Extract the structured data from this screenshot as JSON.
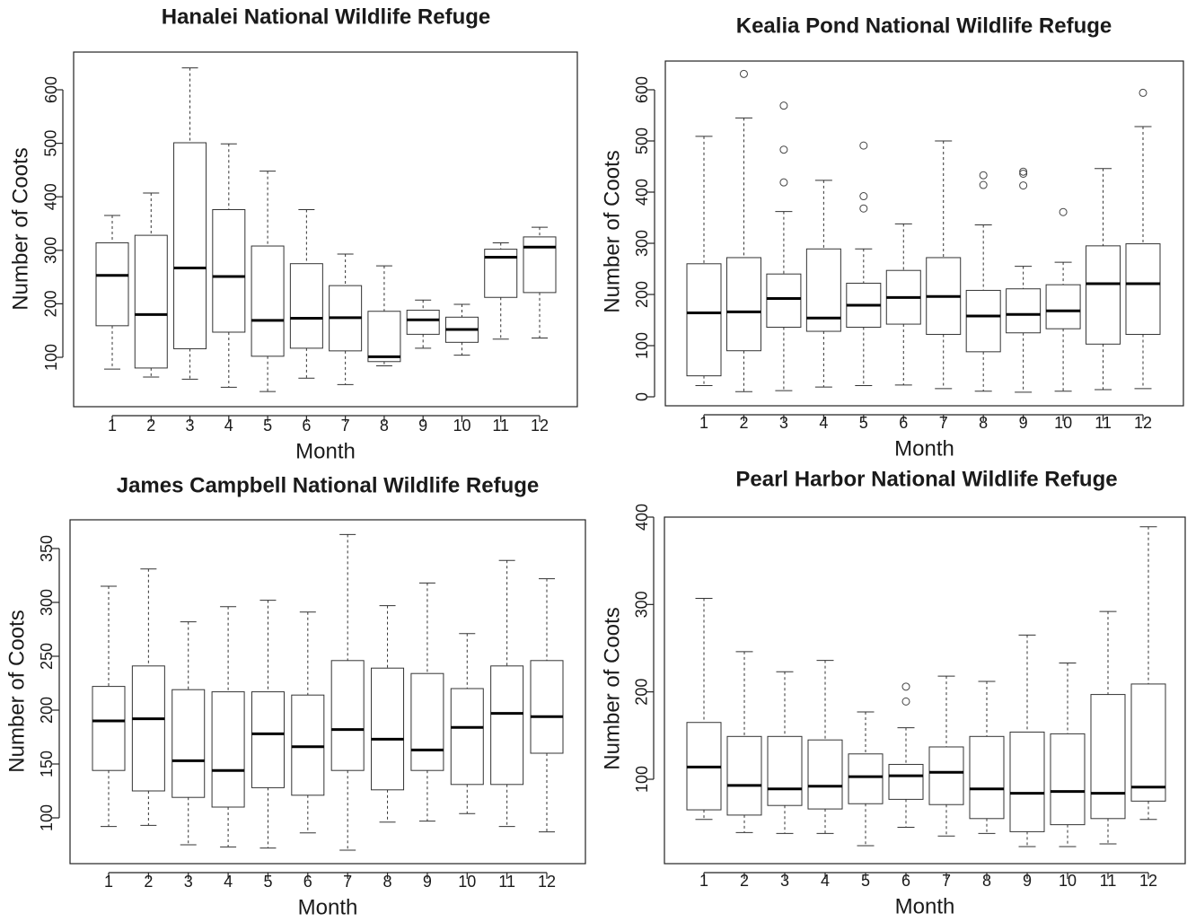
{
  "chart_data": [
    {
      "type": "boxplot",
      "title": "Hanalei National Wildlife Refuge",
      "xlabel": "Month",
      "ylabel": "Number of Coots",
      "categories": [
        "1",
        "2",
        "3",
        "4",
        "5",
        "6",
        "7",
        "8",
        "9",
        "10",
        "11",
        "12"
      ],
      "yticks": [
        100,
        200,
        300,
        400,
        500,
        600
      ],
      "ylim": [
        10,
        655
      ],
      "boxes": [
        {
          "min": 78,
          "q1": 159,
          "median": 253,
          "q3": 314,
          "max": 365,
          "outliers": []
        },
        {
          "min": 63,
          "q1": 80,
          "median": 180,
          "q3": 328,
          "max": 407,
          "outliers": []
        },
        {
          "min": 59,
          "q1": 116,
          "median": 267,
          "q3": 501,
          "max": 641,
          "outliers": []
        },
        {
          "min": 44,
          "q1": 147,
          "median": 251,
          "q3": 376,
          "max": 499,
          "outliers": []
        },
        {
          "min": 36,
          "q1": 102,
          "median": 169,
          "q3": 308,
          "max": 448,
          "outliers": []
        },
        {
          "min": 61,
          "q1": 117,
          "median": 173,
          "q3": 275,
          "max": 376,
          "outliers": []
        },
        {
          "min": 49,
          "q1": 112,
          "median": 174,
          "q3": 234,
          "max": 293,
          "outliers": []
        },
        {
          "min": 84,
          "q1": 92,
          "median": 101,
          "q3": 186,
          "max": 271,
          "outliers": []
        },
        {
          "min": 117,
          "q1": 143,
          "median": 170,
          "q3": 188,
          "max": 207,
          "outliers": []
        },
        {
          "min": 104,
          "q1": 128,
          "median": 152,
          "q3": 175,
          "max": 199,
          "outliers": []
        },
        {
          "min": 134,
          "q1": 212,
          "median": 287,
          "q3": 302,
          "max": 314,
          "outliers": []
        },
        {
          "min": 136,
          "q1": 221,
          "median": 306,
          "q3": 325,
          "max": 343,
          "outliers": []
        }
      ]
    },
    {
      "type": "boxplot",
      "title": "Kealia Pond National Wildlife Refuge",
      "xlabel": "Month",
      "ylabel": "Number of Coots",
      "categories": [
        "1",
        "2",
        "3",
        "4",
        "5",
        "6",
        "7",
        "8",
        "9",
        "10",
        "11",
        "12"
      ],
      "yticks": [
        0,
        100,
        200,
        300,
        400,
        500,
        600
      ],
      "ylim": [
        -15,
        660
      ],
      "boxes": [
        {
          "min": 22,
          "q1": 41,
          "median": 164,
          "q3": 260,
          "max": 509,
          "outliers": []
        },
        {
          "min": 10,
          "q1": 90,
          "median": 166,
          "q3": 272,
          "max": 545,
          "outliers": [
            631
          ]
        },
        {
          "min": 12,
          "q1": 136,
          "median": 192,
          "q3": 240,
          "max": 362,
          "outliers": [
            419,
            483,
            569
          ]
        },
        {
          "min": 19,
          "q1": 128,
          "median": 154,
          "q3": 289,
          "max": 423,
          "outliers": []
        },
        {
          "min": 22,
          "q1": 136,
          "median": 179,
          "q3": 222,
          "max": 289,
          "outliers": [
            368,
            392,
            491
          ]
        },
        {
          "min": 23,
          "q1": 142,
          "median": 194,
          "q3": 247,
          "max": 338,
          "outliers": []
        },
        {
          "min": 16,
          "q1": 122,
          "median": 196,
          "q3": 272,
          "max": 500,
          "outliers": []
        },
        {
          "min": 11,
          "q1": 88,
          "median": 158,
          "q3": 208,
          "max": 336,
          "outliers": [
            414,
            433
          ]
        },
        {
          "min": 9,
          "q1": 125,
          "median": 161,
          "q3": 211,
          "max": 255,
          "outliers": [
            413,
            436,
            440
          ]
        },
        {
          "min": 11,
          "q1": 133,
          "median": 168,
          "q3": 219,
          "max": 263,
          "outliers": [
            361
          ]
        },
        {
          "min": 14,
          "q1": 103,
          "median": 221,
          "q3": 295,
          "max": 446,
          "outliers": []
        },
        {
          "min": 16,
          "q1": 122,
          "median": 221,
          "q3": 299,
          "max": 528,
          "outliers": [
            594
          ]
        }
      ]
    },
    {
      "type": "boxplot",
      "title": "James Campbell National Wildlife Refuge",
      "xlabel": "Month",
      "ylabel": "Number of Coots",
      "categories": [
        "1",
        "2",
        "3",
        "4",
        "5",
        "6",
        "7",
        "8",
        "9",
        "10",
        "11",
        "12"
      ],
      "yticks": [
        100,
        150,
        200,
        250,
        300,
        350
      ],
      "ylim": [
        59,
        377
      ],
      "boxes": [
        {
          "min": 92,
          "q1": 144,
          "median": 190,
          "q3": 222,
          "max": 315,
          "outliers": []
        },
        {
          "min": 93,
          "q1": 125,
          "median": 192,
          "q3": 241,
          "max": 331,
          "outliers": []
        },
        {
          "min": 75,
          "q1": 119,
          "median": 153,
          "q3": 219,
          "max": 282,
          "outliers": []
        },
        {
          "min": 73,
          "q1": 110,
          "median": 144,
          "q3": 217,
          "max": 296,
          "outliers": []
        },
        {
          "min": 72,
          "q1": 128,
          "median": 178,
          "q3": 217,
          "max": 302,
          "outliers": []
        },
        {
          "min": 86,
          "q1": 121,
          "median": 166,
          "q3": 214,
          "max": 291,
          "outliers": []
        },
        {
          "min": 70,
          "q1": 144,
          "median": 182,
          "q3": 246,
          "max": 363,
          "outliers": []
        },
        {
          "min": 96,
          "q1": 126,
          "median": 173,
          "q3": 239,
          "max": 297,
          "outliers": []
        },
        {
          "min": 97,
          "q1": 144,
          "median": 163,
          "q3": 234,
          "max": 318,
          "outliers": []
        },
        {
          "min": 104,
          "q1": 131,
          "median": 184,
          "q3": 220,
          "max": 271,
          "outliers": []
        },
        {
          "min": 92,
          "q1": 131,
          "median": 197,
          "q3": 241,
          "max": 339,
          "outliers": []
        },
        {
          "min": 87,
          "q1": 160,
          "median": 194,
          "q3": 246,
          "max": 322,
          "outliers": []
        }
      ]
    },
    {
      "type": "boxplot",
      "title": "Pearl Harbor National Wildlife Refuge",
      "xlabel": "Month",
      "ylabel": "Number of Coots",
      "categories": [
        "1",
        "2",
        "3",
        "4",
        "5",
        "6",
        "7",
        "8",
        "9",
        "10",
        "11",
        "12"
      ],
      "yticks": [
        100,
        200,
        300,
        400
      ],
      "ylim": [
        8,
        400
      ],
      "boxes": [
        {
          "min": 54,
          "q1": 65,
          "median": 114,
          "q3": 165,
          "max": 307,
          "outliers": []
        },
        {
          "min": 39,
          "q1": 59,
          "median": 93,
          "q3": 149,
          "max": 246,
          "outliers": []
        },
        {
          "min": 38,
          "q1": 70,
          "median": 89,
          "q3": 149,
          "max": 223,
          "outliers": []
        },
        {
          "min": 38,
          "q1": 66,
          "median": 92,
          "q3": 145,
          "max": 236,
          "outliers": []
        },
        {
          "min": 24,
          "q1": 72,
          "median": 103,
          "q3": 129,
          "max": 177,
          "outliers": []
        },
        {
          "min": 45,
          "q1": 77,
          "median": 104,
          "q3": 117,
          "max": 159,
          "outliers": [
            189,
            206
          ]
        },
        {
          "min": 35,
          "q1": 71,
          "median": 108,
          "q3": 137,
          "max": 218,
          "outliers": []
        },
        {
          "min": 38,
          "q1": 55,
          "median": 89,
          "q3": 149,
          "max": 212,
          "outliers": []
        },
        {
          "min": 23,
          "q1": 40,
          "median": 84,
          "q3": 154,
          "max": 265,
          "outliers": []
        },
        {
          "min": 23,
          "q1": 48,
          "median": 86,
          "q3": 152,
          "max": 233,
          "outliers": []
        },
        {
          "min": 26,
          "q1": 55,
          "median": 84,
          "q3": 197,
          "max": 292,
          "outliers": []
        },
        {
          "min": 54,
          "q1": 75,
          "median": 91,
          "q3": 209,
          "max": 389,
          "outliers": []
        }
      ]
    }
  ]
}
